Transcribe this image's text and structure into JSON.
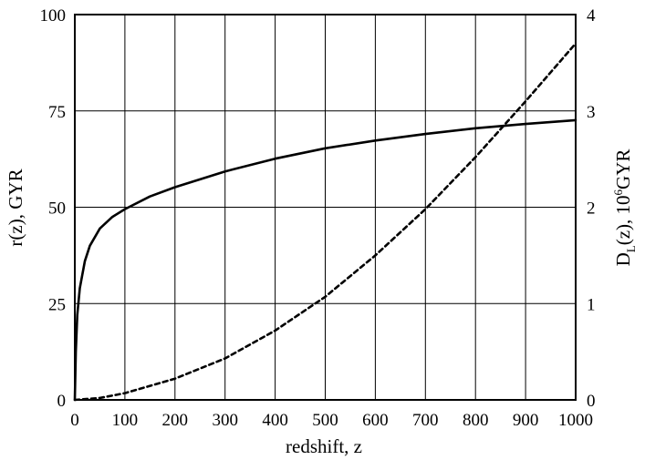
{
  "chart_data": {
    "type": "line",
    "title": "",
    "xlabel": "redshift, z",
    "ylabel_left": "r(z), GYR",
    "ylabel_right": {
      "prefix": "D",
      "subscript": "L",
      "middle": "(z), 10",
      "superscript": "6",
      "suffix": "GYR"
    },
    "xlim": [
      0,
      1000
    ],
    "ylim_left": [
      0,
      100
    ],
    "ylim_right": [
      0,
      4
    ],
    "x_ticks": [
      "0",
      "100",
      "200",
      "300",
      "400",
      "500",
      "600",
      "700",
      "800",
      "900",
      "1000"
    ],
    "y_left_ticks": [
      "0",
      "25",
      "50",
      "75",
      "100"
    ],
    "y_right_ticks": [
      "0",
      "1",
      "2",
      "3",
      "4"
    ],
    "grid": true,
    "legend": "none",
    "series": [
      {
        "axis": "left",
        "style": "solid",
        "color": "#000000",
        "x": [
          0,
          2,
          5,
          10,
          20,
          30,
          50,
          75,
          100,
          150,
          200,
          300,
          400,
          500,
          600,
          700,
          800,
          900,
          1000
        ],
        "y": [
          0,
          12.5,
          22,
          29,
          36,
          40,
          44.5,
          47.5,
          49.5,
          52.8,
          55.2,
          59.3,
          62.6,
          65.3,
          67.3,
          69.0,
          70.5,
          71.6,
          72.6
        ]
      },
      {
        "axis": "right",
        "style": "dashed",
        "color": "#000000",
        "x": [
          0,
          50,
          100,
          200,
          300,
          400,
          500,
          600,
          700,
          800,
          900,
          1000
        ],
        "y": [
          0,
          0.02,
          0.07,
          0.22,
          0.43,
          0.72,
          1.07,
          1.5,
          1.98,
          2.52,
          3.1,
          3.7
        ]
      }
    ]
  }
}
